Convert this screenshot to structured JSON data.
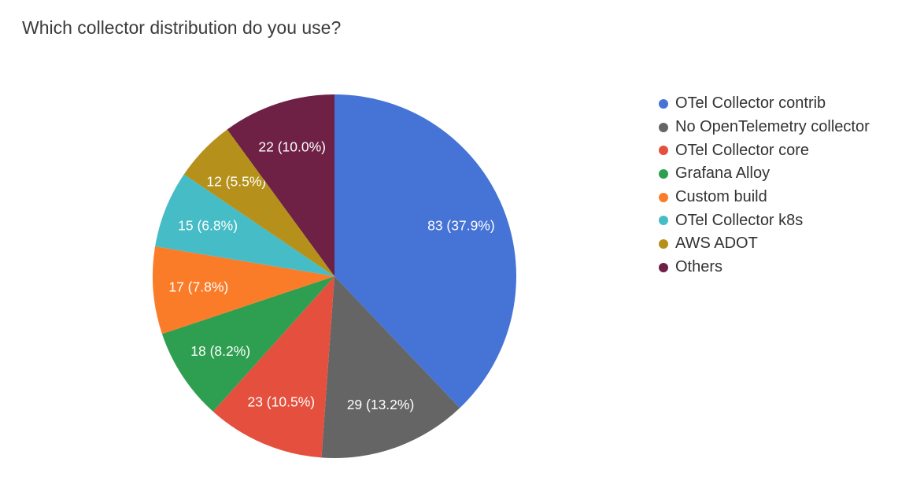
{
  "title": "Which collector distribution do you use?",
  "chart_data": {
    "type": "pie",
    "title": "Which collector distribution do you use?",
    "legend_position": "right",
    "start_angle_deg": 0,
    "direction": "clockwise",
    "label_format": "value (percent%)",
    "label_color": "#ffffff",
    "background_color": "#ffffff",
    "slices": [
      {
        "name": "OTel Collector contrib",
        "value": 83,
        "percent": "37.9",
        "display_label": "83 (37.9%)",
        "color": "#4573D6"
      },
      {
        "name": "No OpenTelemetry collector",
        "value": 29,
        "percent": "13.2",
        "display_label": "29 (13.2%)",
        "color": "#656565"
      },
      {
        "name": "OTel Collector core",
        "value": 23,
        "percent": "10.5",
        "display_label": "23 (10.5%)",
        "color": "#E5503E"
      },
      {
        "name": "Grafana Alloy",
        "value": 18,
        "percent": "8.2",
        "display_label": "18 (8.2%)",
        "color": "#2E9E50"
      },
      {
        "name": "Custom build",
        "value": 17,
        "percent": "7.8",
        "display_label": "17 (7.8%)",
        "color": "#FB7C28"
      },
      {
        "name": "OTel Collector k8s",
        "value": 15,
        "percent": "6.8",
        "display_label": "15 (6.8%)",
        "color": "#45BCC6"
      },
      {
        "name": "AWS ADOT",
        "value": 12,
        "percent": "5.5",
        "display_label": "12 (5.5%)",
        "color": "#B5911C"
      },
      {
        "name": "Others",
        "value": 22,
        "percent": "10.0",
        "display_label": "22 (10.0%)",
        "color": "#6E2045"
      }
    ]
  }
}
